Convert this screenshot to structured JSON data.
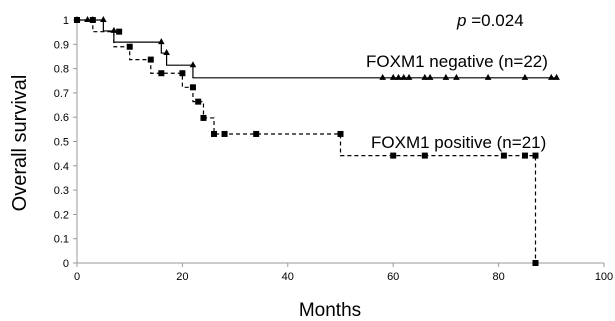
{
  "chart_data": {
    "type": "line",
    "xlabel": "Months",
    "ylabel": "Overall survival",
    "xlim": [
      0,
      100
    ],
    "ylim": [
      0,
      1
    ],
    "xticks": [
      "0",
      "20",
      "40",
      "60",
      "80",
      "100"
    ],
    "yticks": [
      "0",
      "0.1",
      "0.2",
      "0.3",
      "0.4",
      "0.5",
      "0.6",
      "0.7",
      "0.8",
      "0.9",
      "1"
    ],
    "grid": false,
    "annotation": {
      "p_symbol": "p",
      "p_text": " =0.024"
    },
    "series": [
      {
        "name": "FOXM1 negative (n=22)",
        "line_style": "solid",
        "marker": "triangle",
        "color": "#000000",
        "steps": [
          [
            0,
            1.0
          ],
          [
            5,
            0.955
          ],
          [
            7,
            0.909
          ],
          [
            16,
            0.864
          ],
          [
            17,
            0.814
          ],
          [
            22,
            0.762
          ],
          [
            91,
            0.762
          ]
        ],
        "markers": [
          [
            0,
            1.0
          ],
          [
            2,
            1.0
          ],
          [
            3,
            1.0
          ],
          [
            5,
            1.0
          ],
          [
            7,
            0.955
          ],
          [
            16,
            0.909
          ],
          [
            17,
            0.864
          ],
          [
            22,
            0.814
          ],
          [
            58,
            0.762
          ],
          [
            60,
            0.762
          ],
          [
            61,
            0.762
          ],
          [
            62,
            0.762
          ],
          [
            63,
            0.762
          ],
          [
            66,
            0.762
          ],
          [
            67,
            0.762
          ],
          [
            70,
            0.762
          ],
          [
            72,
            0.762
          ],
          [
            78,
            0.762
          ],
          [
            85,
            0.762
          ],
          [
            90,
            0.762
          ],
          [
            91,
            0.762
          ]
        ]
      },
      {
        "name": "FOXM1 positive (n=21)",
        "line_style": "dashed",
        "marker": "square",
        "color": "#000000",
        "steps": [
          [
            0,
            1.0
          ],
          [
            3,
            0.952
          ],
          [
            7,
            0.89
          ],
          [
            10,
            0.837
          ],
          [
            14,
            0.781
          ],
          [
            19,
            0.781
          ],
          [
            20,
            0.723
          ],
          [
            22,
            0.664
          ],
          [
            24,
            0.597
          ],
          [
            26,
            0.531
          ],
          [
            50,
            0.442
          ],
          [
            87,
            0.0
          ]
        ],
        "markers": [
          [
            0,
            1.0
          ],
          [
            3,
            1.0
          ],
          [
            8,
            0.952
          ],
          [
            10,
            0.89
          ],
          [
            14,
            0.837
          ],
          [
            16,
            0.781
          ],
          [
            20,
            0.781
          ],
          [
            22,
            0.723
          ],
          [
            23,
            0.664
          ],
          [
            24,
            0.597
          ],
          [
            26,
            0.531
          ],
          [
            28,
            0.531
          ],
          [
            34,
            0.531
          ],
          [
            50,
            0.531
          ],
          [
            60,
            0.442
          ],
          [
            66,
            0.442
          ],
          [
            81,
            0.442
          ],
          [
            85,
            0.442
          ],
          [
            87,
            0.442
          ],
          [
            87,
            0.0
          ]
        ]
      }
    ]
  }
}
